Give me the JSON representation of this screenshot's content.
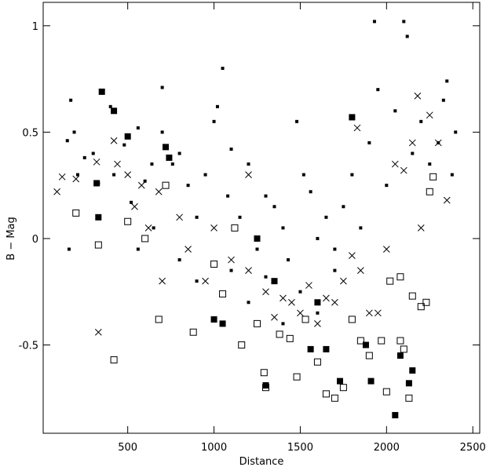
{
  "chart_data": {
    "type": "scatter",
    "x_label": "Distance",
    "y_label": "B − Mag",
    "xlim": [
      10,
      2540
    ],
    "ylim": [
      -0.915,
      1.11
    ],
    "xticks": [
      500,
      1000,
      1500,
      2000,
      2500
    ],
    "yticks": [
      -0.5,
      0,
      0.5,
      1
    ],
    "grid": false,
    "series": [
      {
        "marker": "small-filled-square",
        "color": "#000000",
        "x": [
          150,
          170,
          190,
          210,
          250,
          300,
          330,
          400,
          420,
          480,
          520,
          560,
          600,
          640,
          700,
          700,
          760,
          800,
          850,
          900,
          950,
          1000,
          1020,
          1050,
          1080,
          1100,
          1150,
          1200,
          1250,
          1300,
          1350,
          1400,
          1430,
          1480,
          1520,
          1560,
          1600,
          1650,
          1700,
          1750,
          1800,
          1850,
          1900,
          1930,
          1950,
          2000,
          2050,
          2100,
          2120,
          2150,
          2200,
          2250,
          2300,
          2330,
          2350,
          2400,
          2380,
          1200,
          1300,
          1500,
          1700,
          1600,
          1400,
          1100,
          900,
          800,
          650,
          560,
          160
        ],
        "values": [
          0.46,
          0.65,
          0.5,
          0.3,
          0.38,
          0.4,
          0.26,
          0.62,
          0.3,
          0.44,
          0.17,
          0.52,
          0.27,
          0.35,
          0.71,
          0.5,
          0.35,
          0.4,
          0.25,
          0.1,
          0.3,
          0.55,
          0.62,
          0.8,
          0.2,
          0.42,
          0.1,
          0.35,
          -0.05,
          0.2,
          0.15,
          0.05,
          -0.1,
          0.55,
          0.3,
          0.22,
          0.0,
          0.1,
          -0.05,
          0.15,
          0.3,
          0.05,
          0.45,
          1.02,
          0.7,
          0.25,
          0.6,
          1.02,
          0.95,
          0.4,
          0.55,
          0.35,
          0.45,
          0.65,
          0.74,
          0.5,
          0.3,
          -0.3,
          -0.18,
          -0.25,
          -0.15,
          -0.35,
          -0.4,
          -0.15,
          -0.2,
          -0.1,
          0.05,
          -0.05,
          -0.05
        ]
      },
      {
        "marker": "large-filled-square",
        "color": "#000000",
        "x": [
          350,
          420,
          500,
          320,
          330,
          720,
          740,
          1000,
          1050,
          1300,
          1560,
          1650,
          1730,
          1800,
          1880,
          1910,
          2050,
          2080,
          2130,
          2150,
          1600,
          1250,
          1350
        ],
        "values": [
          0.69,
          0.6,
          0.48,
          0.26,
          0.1,
          0.43,
          0.38,
          -0.38,
          -0.4,
          -0.69,
          -0.52,
          -0.52,
          -0.67,
          0.57,
          -0.5,
          -0.67,
          -0.83,
          -0.55,
          -0.68,
          -0.62,
          -0.3,
          0.0,
          -0.2
        ]
      },
      {
        "marker": "cross",
        "color": "#000000",
        "x": [
          90,
          120,
          200,
          330,
          320,
          420,
          440,
          500,
          540,
          580,
          620,
          680,
          700,
          800,
          850,
          950,
          1000,
          1100,
          1200,
          1300,
          1350,
          1400,
          1450,
          1500,
          1550,
          1600,
          1650,
          1700,
          1750,
          1800,
          1850,
          1900,
          1950,
          2000,
          2050,
          2100,
          2150,
          2180,
          2250,
          2300,
          2350,
          2200,
          1830,
          1200
        ],
        "values": [
          0.22,
          0.29,
          0.28,
          -0.44,
          0.36,
          0.46,
          0.35,
          0.3,
          0.15,
          0.25,
          0.05,
          0.22,
          -0.2,
          0.1,
          -0.05,
          -0.2,
          0.05,
          -0.1,
          -0.15,
          -0.25,
          -0.37,
          -0.28,
          -0.3,
          -0.35,
          -0.22,
          -0.4,
          -0.28,
          -0.3,
          -0.2,
          -0.08,
          -0.15,
          -0.35,
          -0.35,
          -0.05,
          0.35,
          0.32,
          0.45,
          0.67,
          0.58,
          0.45,
          0.18,
          0.05,
          0.52,
          0.3
        ]
      },
      {
        "marker": "open-square",
        "color": "#000000",
        "x": [
          200,
          330,
          420,
          500,
          600,
          680,
          720,
          880,
          1000,
          1050,
          1160,
          1250,
          1290,
          1300,
          1380,
          1440,
          1480,
          1530,
          1600,
          1650,
          1700,
          1750,
          1800,
          1850,
          1900,
          1970,
          2000,
          2080,
          2100,
          2130,
          2150,
          2200,
          2230,
          2250,
          2270,
          2080,
          2020,
          1120
        ],
        "values": [
          0.12,
          -0.03,
          -0.57,
          0.08,
          0.0,
          -0.38,
          0.25,
          -0.44,
          -0.12,
          -0.26,
          -0.5,
          -0.4,
          -0.63,
          -0.7,
          -0.45,
          -0.47,
          -0.65,
          -0.38,
          -0.58,
          -0.73,
          -0.75,
          -0.7,
          -0.38,
          -0.48,
          -0.55,
          -0.48,
          -0.72,
          -0.48,
          -0.52,
          -0.75,
          -0.27,
          -0.32,
          -0.3,
          0.22,
          0.29,
          -0.18,
          -0.2,
          0.05
        ]
      }
    ]
  }
}
